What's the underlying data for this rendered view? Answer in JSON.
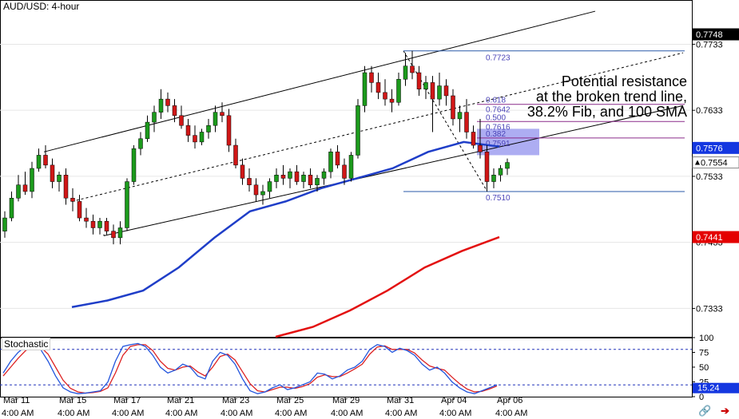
{
  "title": "AUD/USD: 4-hour",
  "annotation": {
    "lines": [
      "Potential resistance",
      "at the broken trend line,",
      "38.2% Fib, and 100 SMA"
    ]
  },
  "colors": {
    "candle_up": "#1c9a1c",
    "candle_down": "#d01717",
    "sma100": "#1f3ec8",
    "sma200": "#e31010",
    "channel": "#000000",
    "fib_line": "#8a2b8a",
    "fib_label": "#4b44b8",
    "level_line": "#2a5aa8",
    "stoch_k": "#2255dd",
    "stoch_d": "#dd2222",
    "stoch_level": "#2233bb",
    "resistance_box": "#9f9ff0"
  },
  "chart_data": [
    {
      "type": "candlestick",
      "title": "AUD/USD: 4-hour",
      "ylim": [
        0.729,
        0.78
      ],
      "y_ticks": [
        "0.7733",
        "0.7633",
        "0.7533",
        "0.7433",
        "0.7333"
      ],
      "x_ticks": [
        {
          "date": "Mar 11",
          "time": "4:00 AM"
        },
        {
          "date": "Mar 15",
          "time": "4:00 AM"
        },
        {
          "date": "Mar 17",
          "time": "4:00 AM"
        },
        {
          "date": "Mar 21",
          "time": "4:00 AM"
        },
        {
          "date": "Mar 23",
          "time": "4:00 AM"
        },
        {
          "date": "Mar 25",
          "time": "4:00 AM"
        },
        {
          "date": "Mar 29",
          "time": "4:00 AM"
        },
        {
          "date": "Mar 31",
          "time": "4:00 AM"
        },
        {
          "date": "Apr 04",
          "time": "4:00 AM"
        },
        {
          "date": "Apr 06",
          "time": "4:00 AM"
        }
      ],
      "price_tags": [
        {
          "value": "0.7748",
          "style": "black"
        },
        {
          "value": "0.7576",
          "style": "blue"
        },
        {
          "value": "0.7554",
          "style": "white-arrow"
        },
        {
          "value": "0.7441",
          "style": "red"
        }
      ],
      "levels": [
        {
          "label": "0.7723",
          "value": 0.7723
        },
        {
          "label": "0.7510",
          "value": 0.751
        }
      ],
      "fib_levels": [
        {
          "ratio": "0.618",
          "price": "0.7642",
          "value": 0.7642
        },
        {
          "ratio": "0.500",
          "price": "0.7616",
          "value": 0.7616
        },
        {
          "ratio": "0.382",
          "price": "0.7591",
          "value": 0.7591
        }
      ],
      "resistance_zone": [
        0.7565,
        0.7605
      ],
      "channel": {
        "upper": [
          [
            0.757,
            0.774
          ],
          [
            0.7545,
            0.7783
          ]
        ],
        "middle": [
          [
            0.7495,
            0.772
          ]
        ],
        "lower": [
          [
            0.744,
            0.764
          ]
        ]
      },
      "sma100": [
        0.7335,
        0.7345,
        0.736,
        0.7395,
        0.744,
        0.748,
        0.7495,
        0.7515,
        0.753,
        0.7545,
        0.757,
        0.7585,
        0.7578
      ],
      "sma200": [
        0.729,
        0.7305,
        0.733,
        0.736,
        0.7395,
        0.742,
        0.7441
      ],
      "ohlc": [
        [
          0.745,
          0.748,
          0.744,
          0.747
        ],
        [
          0.747,
          0.751,
          0.7465,
          0.75
        ],
        [
          0.75,
          0.7535,
          0.7495,
          0.752
        ],
        [
          0.752,
          0.754,
          0.7505,
          0.751
        ],
        [
          0.751,
          0.7555,
          0.75,
          0.7545
        ],
        [
          0.7545,
          0.7575,
          0.754,
          0.7565
        ],
        [
          0.7565,
          0.758,
          0.7545,
          0.755
        ],
        [
          0.755,
          0.756,
          0.7515,
          0.7525
        ],
        [
          0.7525,
          0.754,
          0.751,
          0.7535
        ],
        [
          0.7535,
          0.7545,
          0.749,
          0.75
        ],
        [
          0.75,
          0.7515,
          0.748,
          0.7495
        ],
        [
          0.7495,
          0.7505,
          0.7465,
          0.747
        ],
        [
          0.747,
          0.7485,
          0.7455,
          0.7465
        ],
        [
          0.7465,
          0.7475,
          0.7445,
          0.7455
        ],
        [
          0.7455,
          0.747,
          0.7445,
          0.7465
        ],
        [
          0.7465,
          0.747,
          0.7445,
          0.745
        ],
        [
          0.745,
          0.746,
          0.743,
          0.744
        ],
        [
          0.744,
          0.7465,
          0.743,
          0.7455
        ],
        [
          0.7455,
          0.753,
          0.745,
          0.7525
        ],
        [
          0.7525,
          0.758,
          0.752,
          0.7575
        ],
        [
          0.7575,
          0.76,
          0.7565,
          0.759
        ],
        [
          0.759,
          0.7625,
          0.7585,
          0.7615
        ],
        [
          0.7615,
          0.764,
          0.76,
          0.763
        ],
        [
          0.763,
          0.7665,
          0.762,
          0.765
        ],
        [
          0.765,
          0.766,
          0.763,
          0.764
        ],
        [
          0.764,
          0.765,
          0.7615,
          0.7625
        ],
        [
          0.7625,
          0.764,
          0.7605,
          0.761
        ],
        [
          0.761,
          0.762,
          0.7585,
          0.7595
        ],
        [
          0.7595,
          0.761,
          0.7575,
          0.7585
        ],
        [
          0.7585,
          0.7605,
          0.758,
          0.76
        ],
        [
          0.76,
          0.762,
          0.759,
          0.761
        ],
        [
          0.761,
          0.764,
          0.76,
          0.763
        ],
        [
          0.763,
          0.7645,
          0.7615,
          0.7625
        ],
        [
          0.7625,
          0.7635,
          0.757,
          0.758
        ],
        [
          0.758,
          0.759,
          0.7545,
          0.755
        ],
        [
          0.755,
          0.756,
          0.752,
          0.753
        ],
        [
          0.753,
          0.7545,
          0.751,
          0.752
        ],
        [
          0.752,
          0.753,
          0.7495,
          0.7505
        ],
        [
          0.7505,
          0.752,
          0.749,
          0.751
        ],
        [
          0.751,
          0.753,
          0.75,
          0.7525
        ],
        [
          0.7525,
          0.7545,
          0.7515,
          0.7535
        ],
        [
          0.7535,
          0.755,
          0.752,
          0.753
        ],
        [
          0.753,
          0.7545,
          0.7515,
          0.754
        ],
        [
          0.754,
          0.755,
          0.752,
          0.7525
        ],
        [
          0.7525,
          0.754,
          0.7515,
          0.7535
        ],
        [
          0.7535,
          0.7545,
          0.7515,
          0.752
        ],
        [
          0.752,
          0.7535,
          0.751,
          0.753
        ],
        [
          0.753,
          0.7545,
          0.752,
          0.754
        ],
        [
          0.754,
          0.7575,
          0.753,
          0.757
        ],
        [
          0.757,
          0.758,
          0.7545,
          0.755
        ],
        [
          0.755,
          0.756,
          0.752,
          0.753
        ],
        [
          0.753,
          0.757,
          0.7525,
          0.7565
        ],
        [
          0.7565,
          0.765,
          0.756,
          0.764
        ],
        [
          0.764,
          0.77,
          0.763,
          0.769
        ],
        [
          0.769,
          0.77,
          0.766,
          0.7675
        ],
        [
          0.7675,
          0.769,
          0.765,
          0.766
        ],
        [
          0.766,
          0.768,
          0.764,
          0.765
        ],
        [
          0.765,
          0.7665,
          0.763,
          0.7645
        ],
        [
          0.7645,
          0.769,
          0.764,
          0.768
        ],
        [
          0.768,
          0.772,
          0.767,
          0.77
        ],
        [
          0.77,
          0.7723,
          0.768,
          0.769
        ],
        [
          0.769,
          0.77,
          0.7655,
          0.7665
        ],
        [
          0.7665,
          0.7685,
          0.765,
          0.7675
        ],
        [
          0.7675,
          0.7685,
          0.76,
          0.765
        ],
        [
          0.765,
          0.769,
          0.764,
          0.767
        ],
        [
          0.767,
          0.768,
          0.764,
          0.7655
        ],
        [
          0.7655,
          0.7665,
          0.761,
          0.762
        ],
        [
          0.762,
          0.764,
          0.76,
          0.763
        ],
        [
          0.763,
          0.765,
          0.759,
          0.76
        ],
        [
          0.76,
          0.761,
          0.7575,
          0.758
        ],
        [
          0.758,
          0.762,
          0.756,
          0.757
        ],
        [
          0.757,
          0.758,
          0.751,
          0.7525
        ],
        [
          0.7525,
          0.7545,
          0.7515,
          0.7535
        ],
        [
          0.7535,
          0.755,
          0.7525,
          0.7545
        ],
        [
          0.7545,
          0.756,
          0.7535,
          0.7554
        ]
      ]
    },
    {
      "type": "line",
      "title": "Stochastic",
      "ylim": [
        0,
        100
      ],
      "y_ticks": [
        "100",
        "75",
        "50",
        "25",
        "0"
      ],
      "levels": [
        80,
        20
      ],
      "current_value": "15.24",
      "k": [
        40,
        60,
        75,
        85,
        88,
        80,
        60,
        35,
        15,
        8,
        5,
        6,
        8,
        10,
        25,
        60,
        85,
        88,
        90,
        85,
        70,
        50,
        40,
        45,
        55,
        50,
        35,
        30,
        60,
        75,
        70,
        55,
        30,
        10,
        5,
        8,
        15,
        20,
        12,
        15,
        20,
        25,
        40,
        38,
        30,
        35,
        45,
        50,
        60,
        80,
        88,
        85,
        75,
        82,
        78,
        70,
        55,
        45,
        50,
        40,
        25,
        15,
        8,
        5,
        10,
        15,
        20
      ],
      "d": [
        35,
        50,
        65,
        78,
        85,
        84,
        72,
        50,
        28,
        14,
        8,
        6,
        7,
        9,
        15,
        40,
        70,
        85,
        88,
        88,
        78,
        60,
        48,
        45,
        50,
        52,
        42,
        35,
        50,
        68,
        72,
        62,
        42,
        22,
        10,
        8,
        12,
        16,
        16,
        14,
        17,
        22,
        33,
        37,
        34,
        34,
        40,
        47,
        55,
        72,
        84,
        86,
        80,
        80,
        80,
        74,
        62,
        52,
        48,
        45,
        33,
        22,
        13,
        8,
        9,
        13,
        18
      ]
    }
  ]
}
